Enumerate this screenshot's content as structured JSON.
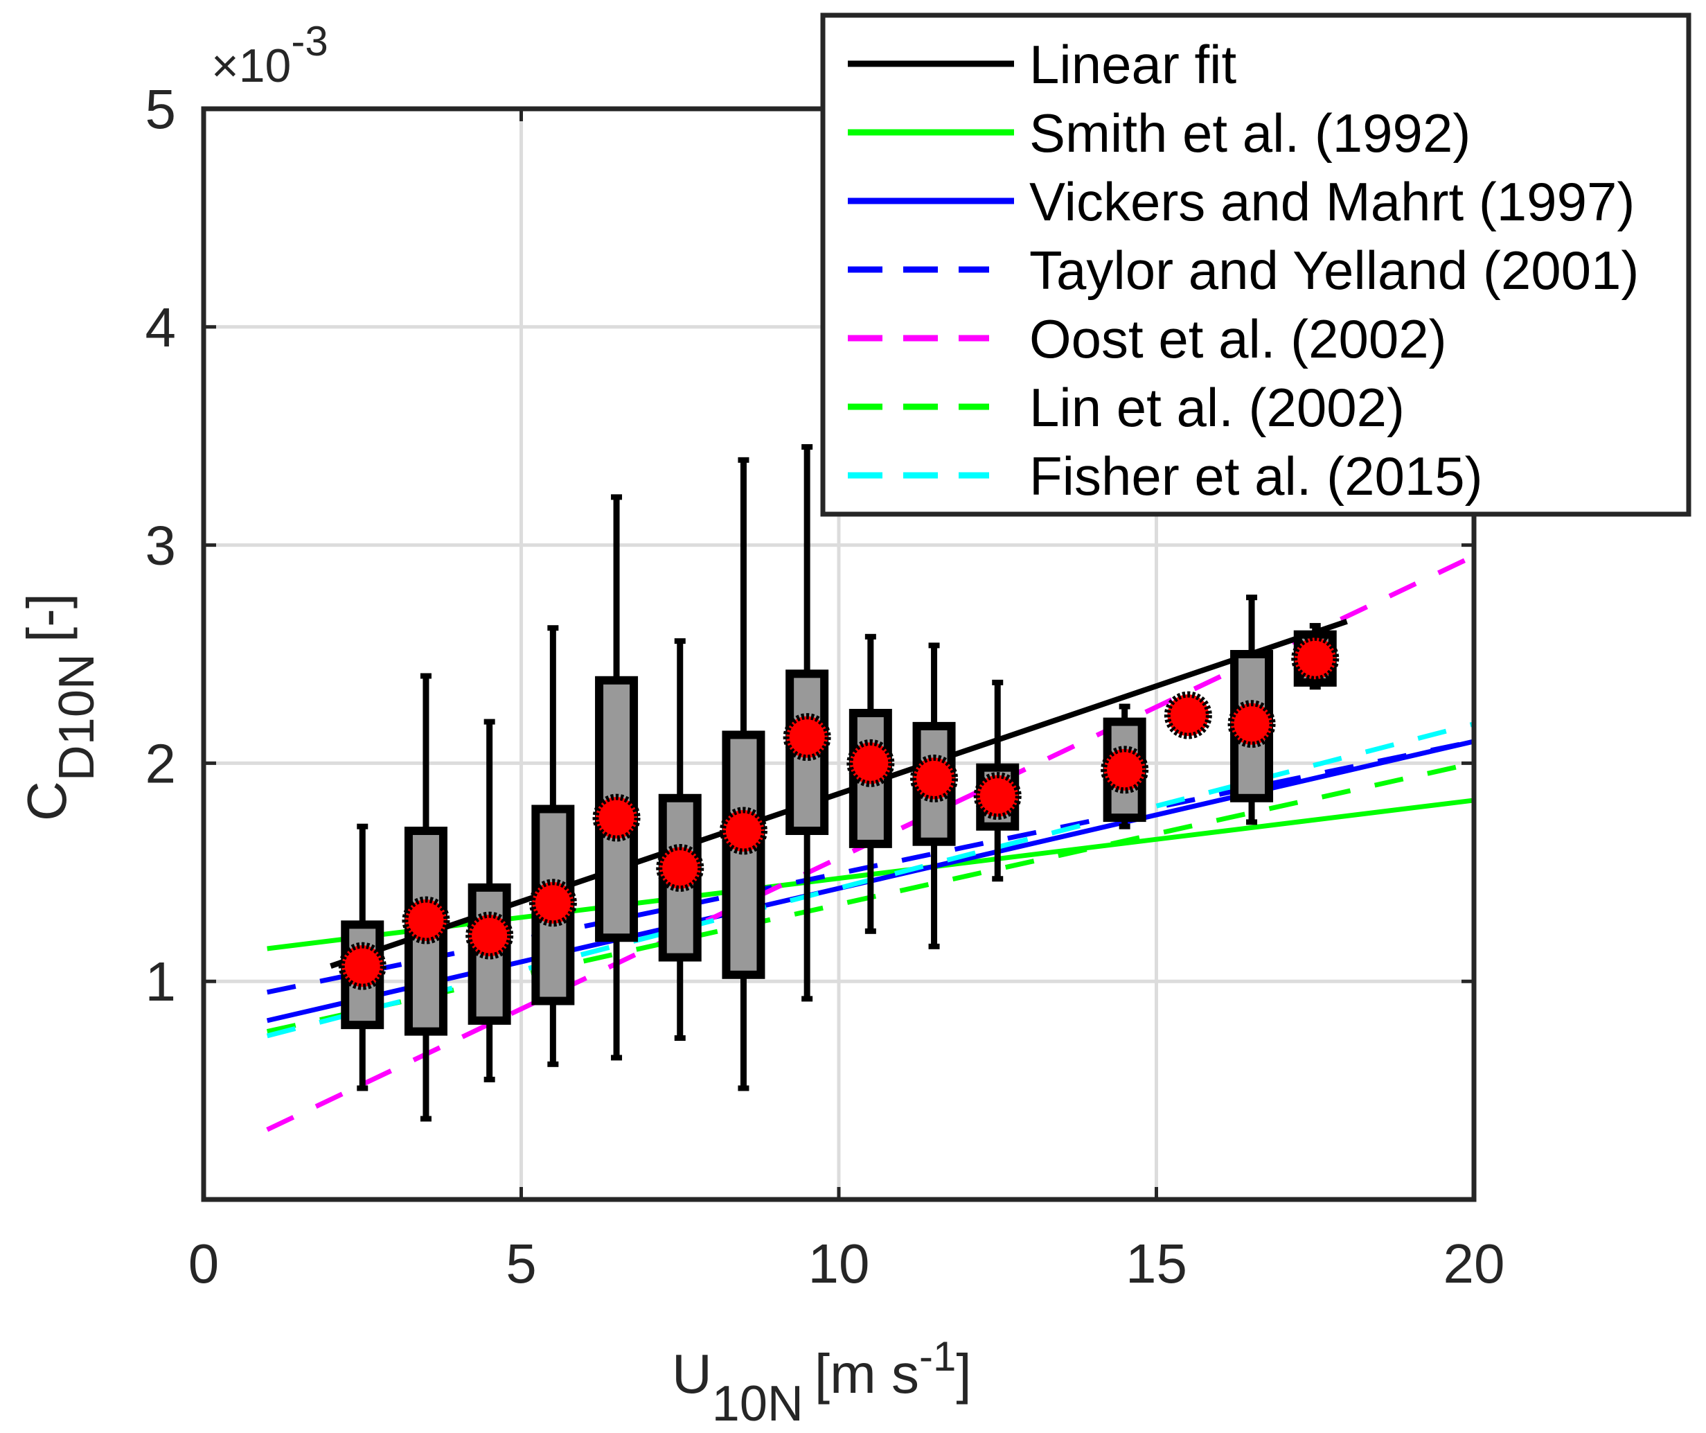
{
  "chart_data": {
    "type": "box-scatter-line",
    "title": "",
    "xlabel": {
      "main": "U",
      "sub": "10N",
      "unit_prefix": "[m s",
      "unit_sup": "-1",
      "unit_suffix": "]"
    },
    "ylabel": {
      "main": "C",
      "sub": "D10N",
      "unit": "[-]"
    },
    "y_exponent_label": {
      "prefix": "×10",
      "exp": "-3"
    },
    "xlim": [
      0,
      20
    ],
    "ylim": [
      0,
      5
    ],
    "y_scale_factor": 0.001,
    "xticks": [
      0,
      5,
      10,
      15,
      20
    ],
    "xtick_labels": [
      "0",
      "5",
      "10",
      "15",
      "20"
    ],
    "yticks": [
      1,
      2,
      3,
      4,
      5
    ],
    "ytick_labels": [
      "1",
      "2",
      "3",
      "4",
      "5"
    ],
    "grid": true,
    "legend_position": "top-right",
    "bins": [
      {
        "x": 2.5,
        "whisker_low": 0.51,
        "q1": 0.8,
        "q3": 1.26,
        "whisker_high": 1.71,
        "mean": 1.07
      },
      {
        "x": 3.5,
        "whisker_low": 0.37,
        "q1": 0.77,
        "q3": 1.69,
        "whisker_high": 2.4,
        "mean": 1.28
      },
      {
        "x": 4.5,
        "whisker_low": 0.55,
        "q1": 0.82,
        "q3": 1.43,
        "whisker_high": 2.19,
        "mean": 1.21
      },
      {
        "x": 5.5,
        "whisker_low": 0.62,
        "q1": 0.91,
        "q3": 1.79,
        "whisker_high": 2.62,
        "mean": 1.36
      },
      {
        "x": 6.5,
        "whisker_low": 0.65,
        "q1": 1.2,
        "q3": 2.38,
        "whisker_high": 3.22,
        "mean": 1.75
      },
      {
        "x": 7.5,
        "whisker_low": 0.74,
        "q1": 1.11,
        "q3": 1.84,
        "whisker_high": 2.56,
        "mean": 1.52
      },
      {
        "x": 8.5,
        "whisker_low": 0.51,
        "q1": 1.03,
        "q3": 2.13,
        "whisker_high": 3.39,
        "mean": 1.69
      },
      {
        "x": 9.5,
        "whisker_low": 0.92,
        "q1": 1.69,
        "q3": 2.41,
        "whisker_high": 3.45,
        "mean": 2.12
      },
      {
        "x": 10.5,
        "whisker_low": 1.23,
        "q1": 1.63,
        "q3": 2.23,
        "whisker_high": 2.58,
        "mean": 2.0
      },
      {
        "x": 11.5,
        "whisker_low": 1.16,
        "q1": 1.64,
        "q3": 2.17,
        "whisker_high": 2.54,
        "mean": 1.93
      },
      {
        "x": 12.5,
        "whisker_low": 1.47,
        "q1": 1.71,
        "q3": 1.98,
        "whisker_high": 2.37,
        "mean": 1.85
      },
      {
        "x": 14.5,
        "whisker_low": 1.71,
        "q1": 1.75,
        "q3": 2.19,
        "whisker_high": 2.26,
        "mean": 1.97
      },
      {
        "x": 15.5,
        "whisker_low": null,
        "q1": null,
        "q3": null,
        "whisker_high": null,
        "mean": 2.22
      },
      {
        "x": 16.5,
        "whisker_low": 1.73,
        "q1": 1.84,
        "q3": 2.5,
        "whisker_high": 2.76,
        "mean": 2.18
      },
      {
        "x": 17.5,
        "whisker_low": 2.35,
        "q1": 2.37,
        "q3": 2.59,
        "whisker_high": 2.63,
        "mean": 2.48
      }
    ],
    "series": [
      {
        "name": "Linear fit",
        "label": "Linear fit",
        "color": "#000000",
        "style": "solid",
        "x": [
          2,
          18
        ],
        "y": [
          1.07,
          2.65
        ]
      },
      {
        "name": "Smith et al. (1992)",
        "label": "Smith et al. (1992)",
        "color": "#00ff00",
        "style": "solid",
        "x": [
          1,
          20
        ],
        "y": [
          1.15,
          1.83
        ]
      },
      {
        "name": "Vickers and Mahrt (1997)",
        "label": "Vickers and Mahrt  (1997)",
        "color": "#0000ff",
        "style": "solid",
        "x": [
          1,
          20
        ],
        "y": [
          0.82,
          2.1
        ]
      },
      {
        "name": "Taylor and Yelland (2001)",
        "label": "Taylor and Yelland (2001)",
        "color": "#0000ff",
        "style": "dashed",
        "x": [
          1,
          20
        ],
        "y": [
          0.95,
          2.1
        ]
      },
      {
        "name": "Oost et al. (2002)",
        "label": "Oost et al. (2002)",
        "color": "#ff00ff",
        "style": "dashed",
        "x": [
          1,
          20
        ],
        "y": [
          0.32,
          2.95
        ]
      },
      {
        "name": "Lin et al. (2002)",
        "label": "Lin et al. (2002)",
        "color": "#00ff00",
        "style": "dashed",
        "x": [
          1,
          20
        ],
        "y": [
          0.77,
          2.0
        ]
      },
      {
        "name": "Fisher et al. (2015)",
        "label": "Fisher et al. (2015)",
        "color": "#00ffff",
        "style": "dashed",
        "x": [
          1,
          20
        ],
        "y": [
          0.75,
          2.18
        ]
      }
    ],
    "colors": {
      "box_fill": "#999999",
      "box_edge": "#000000",
      "marker_fill": "#ff0000",
      "marker_edge": "#000000",
      "grid": "#dcdcdc",
      "axis": "#262626"
    }
  }
}
